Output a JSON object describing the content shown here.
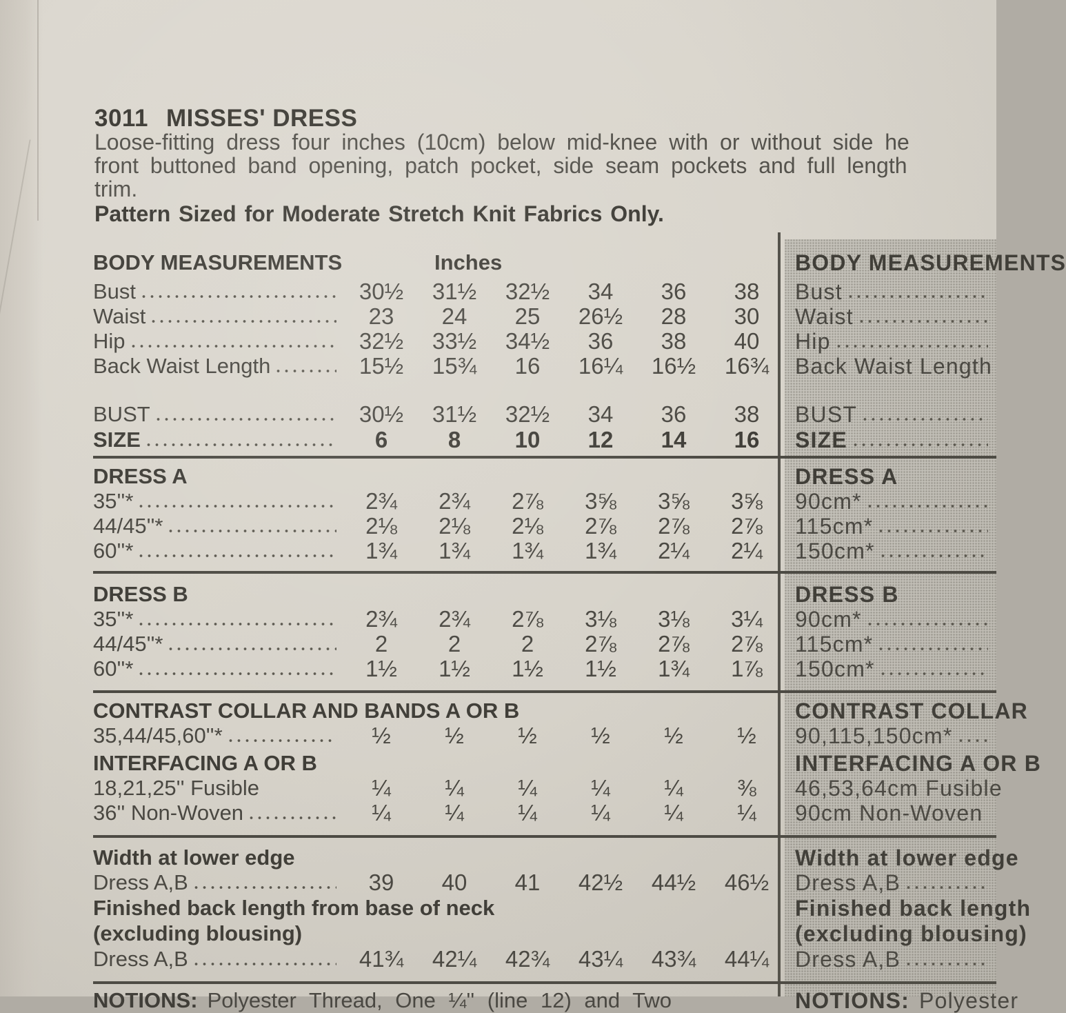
{
  "colors": {
    "paper": "#d9d5cc",
    "panel_gray": "#c7c4bc",
    "ink": "#4a4842",
    "rule": "#4c4a43"
  },
  "header": {
    "pattern_number": "3011",
    "pattern_name": "MISSES' DRESS",
    "description_lines": [
      "Loose-fitting dress four inches (10cm) below mid-knee with or without side he",
      "front buttoned band opening, patch pocket, side seam pockets and full length",
      "trim."
    ],
    "fabric_note": "Pattern Sized for Moderate Stretch Knit Fabrics Only."
  },
  "size_columns": [
    "6",
    "8",
    "10",
    "12",
    "14",
    "16"
  ],
  "imperial_rows": [
    {
      "k": "thead",
      "n": "body-measurements-header",
      "label": "BODY MEASUREMENTS",
      "unit": "Inches"
    },
    {
      "k": "row",
      "n": "bust-row",
      "l": "Bust",
      "leader": true,
      "v": [
        "30½",
        "31½",
        "32½",
        "34",
        "36",
        "38"
      ]
    },
    {
      "k": "row",
      "n": "waist-row",
      "l": "Waist",
      "leader": true,
      "v": [
        "23",
        "24",
        "25",
        "26½",
        "28",
        "30"
      ]
    },
    {
      "k": "row",
      "n": "hip-row",
      "l": "Hip",
      "leader": true,
      "v": [
        "32½",
        "33½",
        "34½",
        "36",
        "38",
        "40"
      ]
    },
    {
      "k": "row",
      "n": "back-waist-length-row",
      "l": "Back Waist Length",
      "leader": true,
      "v": [
        "15½",
        "15¾",
        "16",
        "16¼",
        "16½",
        "16¾"
      ]
    },
    {
      "k": "row",
      "n": "bust-size-row",
      "cls": "mt34",
      "l": "BUST",
      "leader": true,
      "v": [
        "30½",
        "31½",
        "32½",
        "34",
        "36",
        "38"
      ]
    },
    {
      "k": "row",
      "n": "size-row",
      "cls": "mt1",
      "l": "SIZE",
      "lb": true,
      "vb": true,
      "leader": true,
      "v": [
        "6",
        "8",
        "10",
        "12",
        "14",
        "16"
      ]
    },
    {
      "k": "hr",
      "n": "divider-1",
      "cls": "mt5"
    },
    {
      "k": "title",
      "n": "dress-a-title",
      "cls": "mt8",
      "t": "DRESS A"
    },
    {
      "k": "row",
      "n": "dress-a-35",
      "l": "35''*",
      "leader": true,
      "v": [
        "2¾",
        "2¾",
        "2⅞",
        "3⅝",
        "3⅝",
        "3⅝"
      ]
    },
    {
      "k": "row",
      "n": "dress-a-44-45",
      "l": "44/45''*",
      "leader": true,
      "v": [
        "2⅛",
        "2⅛",
        "2⅛",
        "2⅞",
        "2⅞",
        "2⅞"
      ]
    },
    {
      "k": "row",
      "n": "dress-a-60",
      "l": "60''*",
      "leader": true,
      "v": [
        "1¾",
        "1¾",
        "1¾",
        "1¾",
        "2¼",
        "2¼"
      ]
    },
    {
      "k": "hr",
      "n": "divider-2",
      "cls": "mt11"
    },
    {
      "k": "title",
      "n": "dress-b-title",
      "cls": "mt12",
      "t": "DRESS B"
    },
    {
      "k": "row",
      "n": "dress-b-35",
      "l": "35''*",
      "leader": true,
      "v": [
        "2¾",
        "2¾",
        "2⅞",
        "3⅛",
        "3⅛",
        "3¼"
      ]
    },
    {
      "k": "row",
      "n": "dress-b-44-45",
      "l": "44/45''*",
      "leader": true,
      "v": [
        "2",
        "2",
        "2",
        "2⅞",
        "2⅞",
        "2⅞"
      ]
    },
    {
      "k": "row",
      "n": "dress-b-60",
      "l": "60''*",
      "leader": true,
      "v": [
        "1½",
        "1½",
        "1½",
        "1½",
        "1¾",
        "1⅞"
      ]
    },
    {
      "k": "hr",
      "n": "divider-3",
      "cls": "mt13"
    },
    {
      "k": "title",
      "n": "contrast-title",
      "cls": "mt8",
      "t": "CONTRAST COLLAR AND BANDS A OR B"
    },
    {
      "k": "row",
      "n": "contrast-row",
      "l": "35,44/45,60''*",
      "leader": true,
      "v": [
        "½",
        "½",
        "½",
        "½",
        "½",
        "½"
      ]
    },
    {
      "k": "title",
      "n": "interfacing-title",
      "cls": "mt4",
      "t": "INTERFACING A OR B"
    },
    {
      "k": "row",
      "n": "interfacing-fusible-row",
      "l": "18,21,25'' Fusible",
      "v": [
        "¼",
        "¼",
        "¼",
        "¼",
        "¼",
        "⅜"
      ]
    },
    {
      "k": "row",
      "n": "interfacing-nonwoven-row",
      "l": "36'' Non-Woven",
      "leader": true,
      "v": [
        "¼",
        "¼",
        "¼",
        "¼",
        "¼",
        "¼"
      ]
    },
    {
      "k": "hr",
      "n": "divider-4",
      "cls": "mt14"
    },
    {
      "k": "title",
      "n": "width-lower-edge-title",
      "cls": "mt11",
      "t": "Width at lower edge"
    },
    {
      "k": "row",
      "n": "width-dress-ab-row",
      "l": "Dress A,B",
      "leader": true,
      "v": [
        "39",
        "40",
        "41",
        "42½",
        "44½",
        "46½"
      ]
    },
    {
      "k": "title",
      "n": "finished-back-length-title",
      "cls": "mt1",
      "t": "Finished back length from base of neck"
    },
    {
      "k": "title",
      "n": "excluding-blousing-title",
      "cls": "mt1",
      "t": "(excluding blousing)"
    },
    {
      "k": "row",
      "n": "finished-dress-ab-row",
      "cls": "mt1",
      "l": "Dress A,B",
      "leader": true,
      "v": [
        "41¾",
        "42¼",
        "42¾",
        "43¼",
        "43¾",
        "44¼"
      ]
    },
    {
      "k": "hr",
      "n": "divider-5",
      "cls": "mt14"
    },
    {
      "k": "text",
      "n": "notions-partial",
      "cls": "mt6",
      "b": "NOTIONS:",
      "r": "Polyester Thread, One ¼'' (line 12) and Two"
    }
  ],
  "metric_rows": [
    {
      "k": "thead",
      "n": "metric-body-measurements-header",
      "label": "BODY MEASUREMENTS"
    },
    {
      "k": "row",
      "n": "metric-bust-row",
      "l": "Bust",
      "leader": true
    },
    {
      "k": "row",
      "n": "metric-waist-row",
      "l": "Waist",
      "leader": true
    },
    {
      "k": "row",
      "n": "metric-hip-row",
      "l": "Hip",
      "leader": true
    },
    {
      "k": "row",
      "n": "metric-back-waist-length-row",
      "l": "Back Waist Length",
      "leader": true
    },
    {
      "k": "row",
      "n": "metric-bust-size-row",
      "cls": "mt34",
      "l": "BUST",
      "leader": true
    },
    {
      "k": "row",
      "n": "metric-size-row",
      "cls": "mt1",
      "l": "SIZE",
      "lb": true,
      "leader": true
    },
    {
      "k": "hr",
      "n": "metric-divider-1",
      "cls": "mt5"
    },
    {
      "k": "title",
      "n": "metric-dress-a-title",
      "cls": "mt8",
      "t": "DRESS A"
    },
    {
      "k": "row",
      "n": "metric-dress-a-90",
      "l": "90cm*",
      "leader": true
    },
    {
      "k": "row",
      "n": "metric-dress-a-115",
      "l": "115cm*",
      "leader": true
    },
    {
      "k": "row",
      "n": "metric-dress-a-150",
      "l": "150cm*",
      "leader": true
    },
    {
      "k": "hr",
      "n": "metric-divider-2",
      "cls": "mt11"
    },
    {
      "k": "title",
      "n": "metric-dress-b-title",
      "cls": "mt12",
      "t": "DRESS B"
    },
    {
      "k": "row",
      "n": "metric-dress-b-90",
      "l": "90cm*",
      "leader": true
    },
    {
      "k": "row",
      "n": "metric-dress-b-115",
      "l": "115cm*",
      "leader": true
    },
    {
      "k": "row",
      "n": "metric-dress-b-150",
      "l": "150cm*",
      "leader": true
    },
    {
      "k": "hr",
      "n": "metric-divider-3",
      "cls": "mt13"
    },
    {
      "k": "title",
      "n": "metric-contrast-title",
      "cls": "mt8",
      "t": "CONTRAST COLLAR"
    },
    {
      "k": "row",
      "n": "metric-contrast-row",
      "l": "90,115,150cm*",
      "leader": true
    },
    {
      "k": "title",
      "n": "metric-interfacing-title",
      "cls": "mt4",
      "t": "INTERFACING A OR B"
    },
    {
      "k": "row",
      "n": "metric-interfacing-fusible-row",
      "l": "46,53,64cm Fusible"
    },
    {
      "k": "row",
      "n": "metric-interfacing-nonwoven-row",
      "l": "90cm Non-Woven",
      "leader": true
    },
    {
      "k": "hr",
      "n": "metric-divider-4",
      "cls": "mt14"
    },
    {
      "k": "title",
      "n": "metric-width-lower-edge-title",
      "cls": "mt11",
      "t": "Width at lower edge"
    },
    {
      "k": "row",
      "n": "metric-width-dress-ab-row",
      "l": "Dress A,B",
      "leader": true
    },
    {
      "k": "title",
      "n": "metric-finished-back-title",
      "cls": "mt1",
      "t": "Finished back length"
    },
    {
      "k": "title",
      "n": "metric-excluding-blousing-title",
      "cls": "mt1",
      "t": "(excluding blousing)"
    },
    {
      "k": "row",
      "n": "metric-finished-dress-ab-row",
      "cls": "mt1",
      "l": "Dress A,B",
      "leader": true
    },
    {
      "k": "hr",
      "n": "metric-divider-5",
      "cls": "mt14"
    },
    {
      "k": "text",
      "n": "metric-notions-partial",
      "cls": "mt6",
      "b": "NOTIONS:",
      "r": "Polyester"
    }
  ]
}
